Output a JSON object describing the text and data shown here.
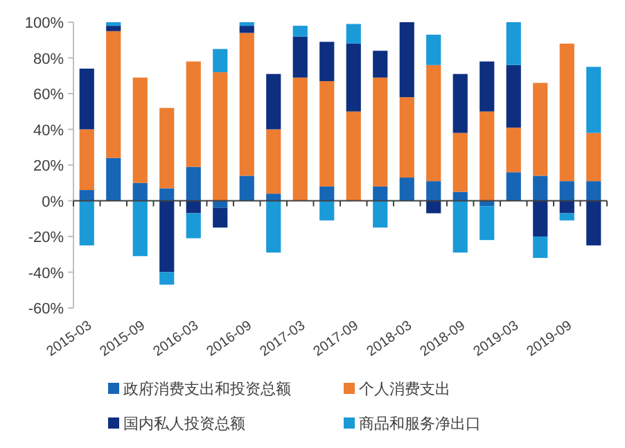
{
  "chart_data": {
    "type": "bar",
    "stacked": true,
    "categories": [
      "2015-03",
      null,
      "2015-09",
      null,
      "2016-03",
      null,
      "2016-09",
      null,
      "2017-03",
      null,
      "2017-09",
      null,
      "2018-03",
      null,
      "2018-09",
      null,
      "2019-03",
      null,
      "2019-09",
      null
    ],
    "series": [
      {
        "name": "政府消费支出和投资总额",
        "color": "#1766b5",
        "values": [
          6,
          24,
          10,
          7,
          19,
          -4,
          14,
          4,
          null,
          8,
          0,
          8,
          13,
          11,
          5,
          -3,
          16,
          14,
          11,
          11
        ]
      },
      {
        "name": "个人消费支出",
        "color": "#ed7d31",
        "values": [
          34,
          71,
          59,
          45,
          59,
          72,
          80,
          36,
          69,
          59,
          50,
          61,
          45,
          65,
          33,
          50,
          25,
          52,
          77,
          27
        ]
      },
      {
        "name": "国内私人投资总额",
        "color": "#0e2f80",
        "values": [
          34,
          3,
          0,
          -40,
          -7,
          -11,
          4,
          31,
          23,
          22,
          38,
          15,
          42,
          -7,
          33,
          28,
          35,
          -20,
          -7,
          -25
        ]
      },
      {
        "name": "商品和服务净出口",
        "color": "#1b9ad8",
        "values": [
          -25,
          2,
          -31,
          -7,
          -14,
          13,
          2,
          -29,
          6,
          -11,
          11,
          -15,
          0,
          17,
          -29,
          -19,
          24,
          -12,
          -4,
          37
        ]
      }
    ],
    "ylim": [
      -60,
      100
    ],
    "yticks": [
      {
        "value": -60,
        "label": "-60%"
      },
      {
        "value": -40,
        "label": "-40%"
      },
      {
        "value": -20,
        "label": "-20%"
      },
      {
        "value": 0,
        "label": "0%"
      },
      {
        "value": 20,
        "label": "20%"
      },
      {
        "value": 40,
        "label": "40%"
      },
      {
        "value": 60,
        "label": "60%"
      },
      {
        "value": 80,
        "label": "80%"
      },
      {
        "value": 100,
        "label": "100%"
      }
    ],
    "legend": "bottom"
  }
}
